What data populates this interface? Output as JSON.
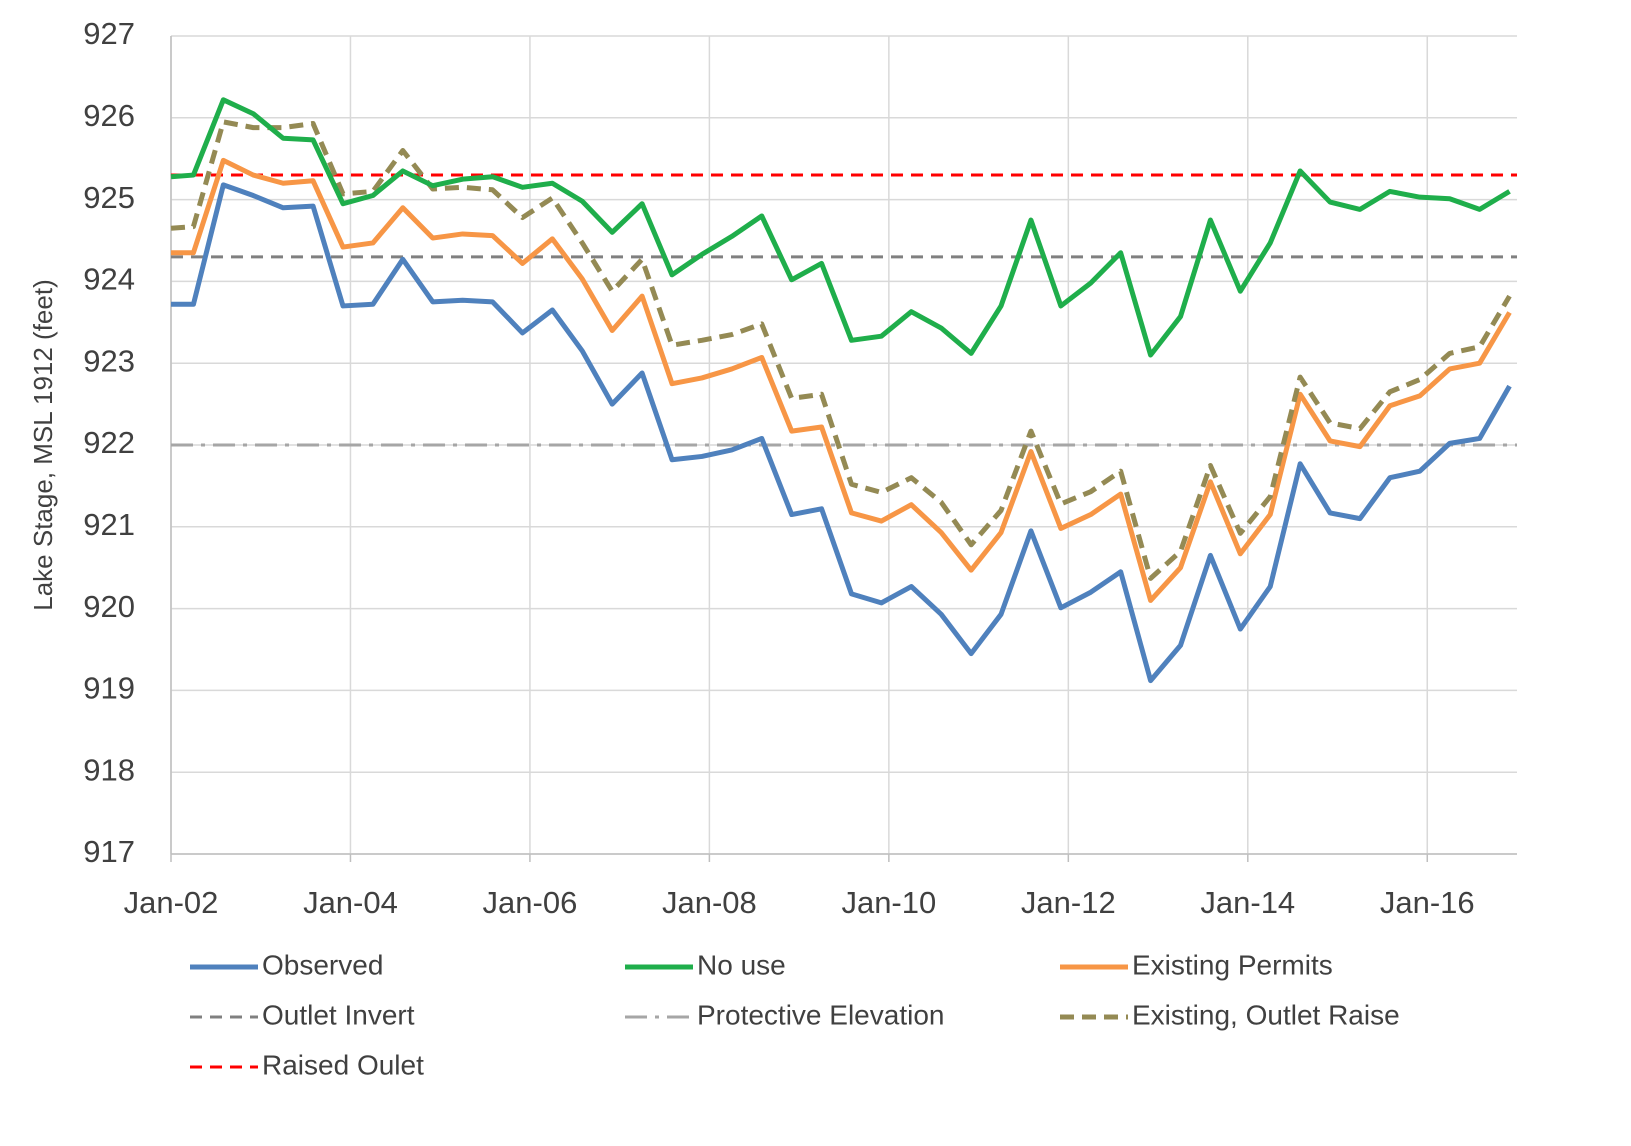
{
  "chart_data": {
    "type": "line",
    "y_label": "Lake Stage, MSL 1912 (feet)",
    "x": [
      "2002-01",
      "2002-04",
      "2002-08",
      "2002-12",
      "2003-04",
      "2003-08",
      "2003-12",
      "2004-04",
      "2004-08",
      "2004-12",
      "2005-04",
      "2005-08",
      "2005-12",
      "2006-04",
      "2006-08",
      "2006-12",
      "2007-04",
      "2007-08",
      "2007-12",
      "2008-04",
      "2008-08",
      "2008-12",
      "2009-04",
      "2009-08",
      "2009-12",
      "2010-04",
      "2010-08",
      "2010-12",
      "2011-04",
      "2011-08",
      "2011-12",
      "2012-04",
      "2012-08",
      "2012-12",
      "2013-04",
      "2013-08",
      "2013-12",
      "2014-04",
      "2014-08",
      "2014-12",
      "2015-04",
      "2015-08",
      "2015-12",
      "2016-04",
      "2016-08",
      "2016-12"
    ],
    "series": [
      {
        "name": "Observed",
        "color": "#4f81bd",
        "width": 5,
        "dash": "",
        "values": [
          923.72,
          923.72,
          925.18,
          925.05,
          924.9,
          924.92,
          923.7,
          923.72,
          924.27,
          923.75,
          923.77,
          923.75,
          923.37,
          923.65,
          923.15,
          922.5,
          922.88,
          921.82,
          921.86,
          921.94,
          922.08,
          921.15,
          921.22,
          920.18,
          920.07,
          920.27,
          919.93,
          919.45,
          919.93,
          920.95,
          920.01,
          920.2,
          920.45,
          919.12,
          919.55,
          920.65,
          919.75,
          920.27,
          921.77,
          921.17,
          921.1,
          921.6,
          921.68,
          922.02,
          922.08,
          922.72
        ]
      },
      {
        "name": "No use",
        "color": "#1fae4b",
        "width": 5,
        "dash": "",
        "values": [
          925.28,
          925.3,
          926.22,
          926.05,
          925.75,
          925.73,
          924.95,
          925.05,
          925.35,
          925.17,
          925.25,
          925.28,
          925.15,
          925.2,
          924.98,
          924.6,
          924.95,
          924.08,
          924.33,
          924.55,
          924.8,
          924.02,
          924.22,
          923.28,
          923.33,
          923.63,
          923.43,
          923.12,
          923.7,
          924.75,
          923.7,
          923.98,
          924.35,
          923.1,
          923.57,
          924.75,
          923.88,
          924.47,
          925.35,
          924.97,
          924.88,
          925.1,
          925.03,
          925.01,
          924.88,
          925.1
        ]
      },
      {
        "name": "Existing Permits",
        "color": "#f79646",
        "width": 5,
        "dash": "",
        "values": [
          924.35,
          924.35,
          925.48,
          925.3,
          925.2,
          925.23,
          924.42,
          924.47,
          924.9,
          924.53,
          924.58,
          924.56,
          924.22,
          924.52,
          924.03,
          923.4,
          923.82,
          922.75,
          922.82,
          922.93,
          923.07,
          922.17,
          922.22,
          921.17,
          921.07,
          921.27,
          920.93,
          920.47,
          920.93,
          921.92,
          920.98,
          921.15,
          921.4,
          920.1,
          920.5,
          921.55,
          920.67,
          921.15,
          922.62,
          922.05,
          921.98,
          922.48,
          922.6,
          922.93,
          923.0,
          923.62
        ]
      },
      {
        "name": "Outlet Invert",
        "color": "#808080",
        "width": 3,
        "dash": "12 8",
        "value": 924.3
      },
      {
        "name": "Protective Elevation",
        "color": "#a6a6a6",
        "width": 3,
        "dash": "22 8 4 8",
        "value": 922
      },
      {
        "name": "Existing, Outlet Raise",
        "color": "#948a54",
        "width": 5,
        "dash": "14 8",
        "values": [
          924.65,
          924.67,
          925.95,
          925.88,
          925.88,
          925.93,
          925.07,
          925.1,
          925.6,
          925.13,
          925.15,
          925.12,
          924.78,
          925.02,
          924.47,
          923.88,
          924.27,
          923.22,
          923.28,
          923.35,
          923.48,
          922.57,
          922.62,
          921.52,
          921.42,
          921.6,
          921.3,
          920.78,
          921.2,
          922.17,
          921.28,
          921.43,
          921.68,
          920.37,
          920.7,
          921.75,
          920.92,
          921.37,
          922.83,
          922.27,
          922.2,
          922.65,
          922.8,
          923.12,
          923.2,
          923.82
        ]
      },
      {
        "name": "Raised Oulet",
        "color": "#ff0000",
        "width": 3,
        "dash": "12 8",
        "value": 925.3
      }
    ],
    "xlim": [
      "2002-01",
      "2017-01"
    ],
    "xticks": [
      {
        "value": "2002-01",
        "label": "Jan-02"
      },
      {
        "value": "2004-01",
        "label": "Jan-04"
      },
      {
        "value": "2006-01",
        "label": "Jan-06"
      },
      {
        "value": "2008-01",
        "label": "Jan-08"
      },
      {
        "value": "2010-01",
        "label": "Jan-10"
      },
      {
        "value": "2012-01",
        "label": "Jan-12"
      },
      {
        "value": "2014-01",
        "label": "Jan-14"
      },
      {
        "value": "2016-01",
        "label": "Jan-16"
      }
    ],
    "ylim": [
      917,
      927
    ],
    "yticks": [
      917,
      918,
      919,
      920,
      921,
      922,
      923,
      924,
      925,
      926,
      927
    ],
    "grid": true
  }
}
